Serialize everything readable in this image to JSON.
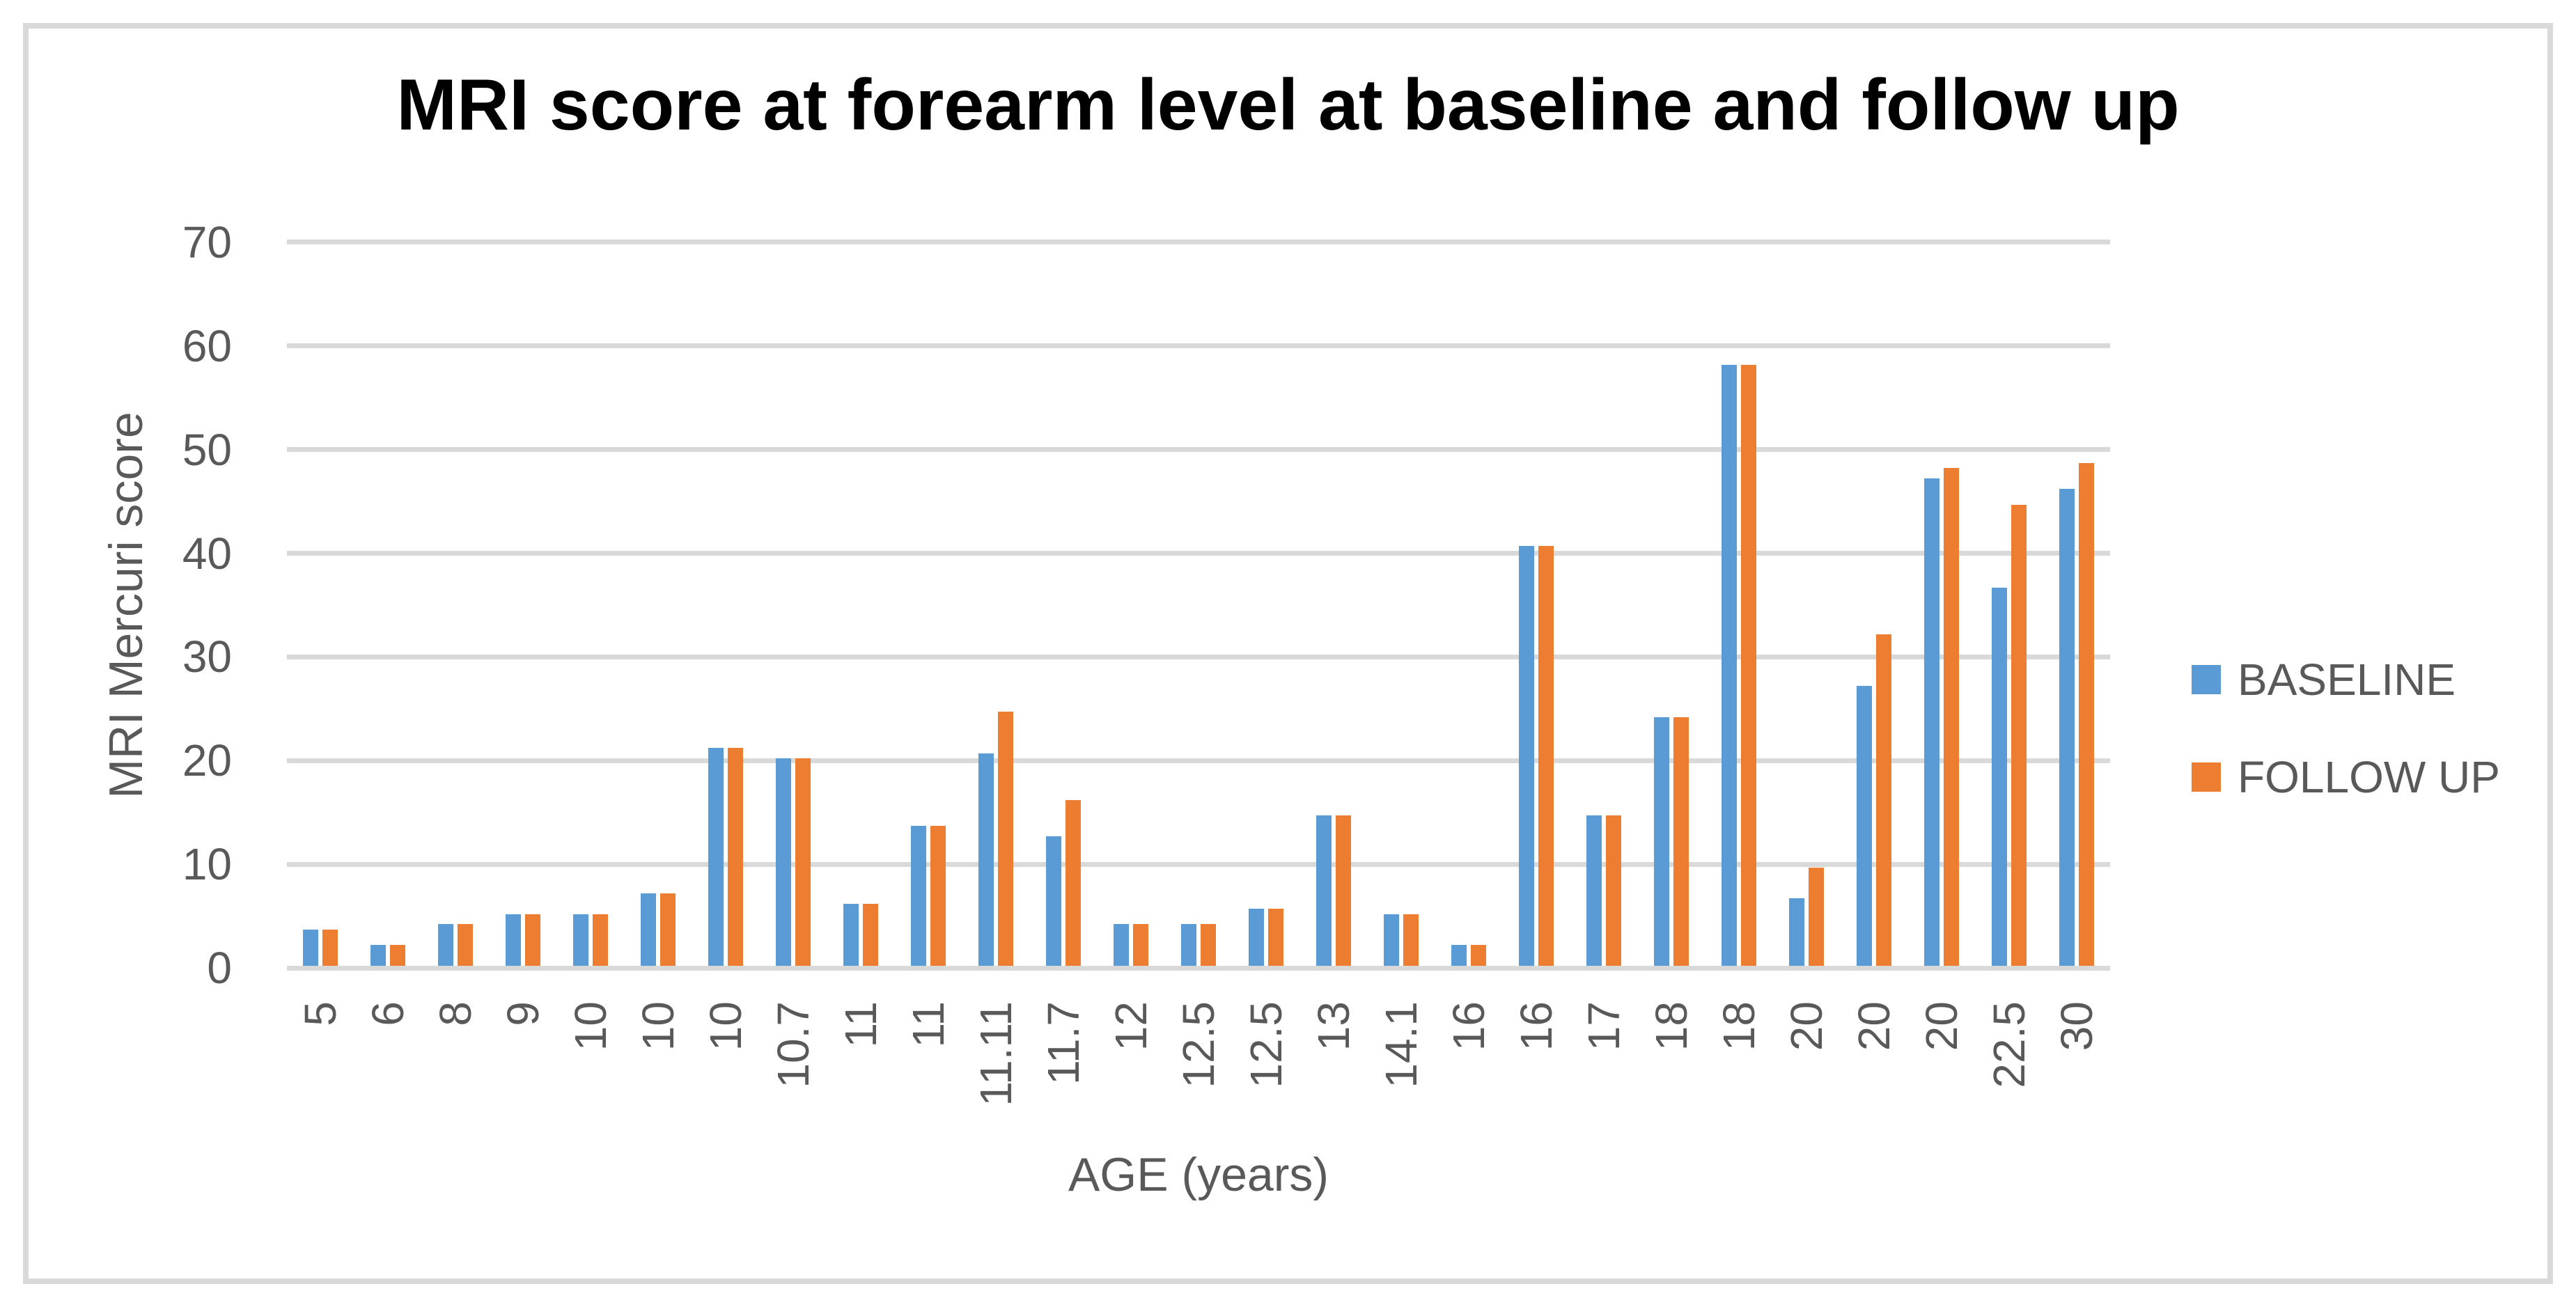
{
  "chart_data": {
    "type": "bar",
    "title": "MRI score at forearm level at baseline and follow up",
    "xlabel": "AGE (years)",
    "ylabel": "MRI Mercuri score",
    "categories": [
      "5",
      "6",
      "8",
      "9",
      "10",
      "10",
      "10",
      "10.7",
      "11",
      "11",
      "11.11",
      "11.7",
      "12",
      "12.5",
      "12.5",
      "13",
      "14.1",
      "16",
      "16",
      "17",
      "18",
      "18",
      "20",
      "20",
      "20",
      "22.5",
      "30"
    ],
    "series": [
      {
        "name": "BASELINE",
        "color": "#5B9BD5",
        "values": [
          3.5,
          2,
          4,
          5,
          5,
          7,
          21,
          20,
          6,
          13.5,
          20.5,
          12.5,
          4,
          4,
          5.5,
          14.5,
          5,
          2,
          40.5,
          14.5,
          24,
          58,
          6.5,
          27,
          47,
          36.5,
          46
        ]
      },
      {
        "name": "FOLLOW UP",
        "color": "#ED7D31",
        "values": [
          3.5,
          2,
          4,
          5,
          5,
          7,
          21,
          20,
          6,
          13.5,
          24.5,
          16,
          4,
          4,
          5.5,
          14.5,
          5,
          2,
          40.5,
          14.5,
          24,
          58,
          9.5,
          32,
          48,
          44.5,
          48.5
        ]
      }
    ],
    "ylim": [
      0,
      70
    ],
    "ytick_step": 10,
    "y_tick_labels": [
      "0",
      "10",
      "20",
      "30",
      "40",
      "50",
      "60",
      "70"
    ],
    "grid": true,
    "legend_position": "right",
    "gridline_color": "#D9D9D9",
    "text_color": "#595959"
  }
}
